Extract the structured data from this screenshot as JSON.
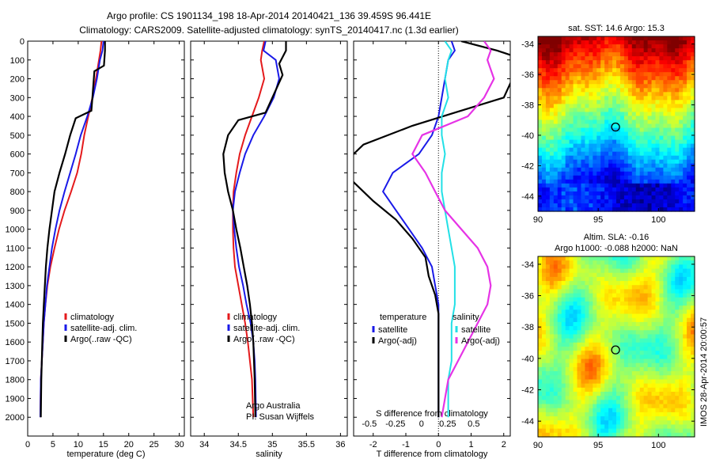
{
  "header": {
    "title_line1": "Argo profile: CS 1901134_198 18-Apr-2014 20140421_136 39.459S 96.441E",
    "title_line2": "Climatology: CARS2009. Satellite-adjusted climatology: synTS_20140417.nc (1.3d earlier)"
  },
  "side_note": "IMOS 28-Apr-2014 20:00:57",
  "colors": {
    "climatology": "#e41a1c",
    "satellite": "#1a1ae8",
    "argo": "#000000",
    "salinity_satellite": "#22e0e6",
    "salinity_argo": "#e633e6"
  },
  "chart_data": [
    {
      "type": "line",
      "xlabel": "temperature (deg C)",
      "xlim": [
        0,
        31
      ],
      "xticks": [
        0,
        5,
        10,
        15,
        20,
        25,
        30
      ],
      "ylim": [
        2100,
        0
      ],
      "yticks": [
        0,
        100,
        200,
        300,
        400,
        500,
        600,
        700,
        800,
        900,
        1000,
        1100,
        1200,
        1300,
        1400,
        1500,
        1600,
        1700,
        1800,
        1900,
        2000
      ],
      "legend": [
        "climatology",
        "satellite-adj. clim.",
        "Argo(..raw -QC)"
      ],
      "series": [
        {
          "name": "climatology",
          "color_key": "climatology",
          "x": [
            14.6,
            14.4,
            14.1,
            13.5,
            12.8,
            12.0,
            11.2,
            10.6,
            9.8,
            8.6,
            7.3,
            6.2,
            5.3,
            4.5,
            3.9,
            3.5,
            3.2,
            3.0,
            2.8,
            2.6,
            2.5
          ],
          "y": [
            0,
            50,
            100,
            200,
            300,
            400,
            500,
            600,
            700,
            800,
            900,
            1000,
            1100,
            1200,
            1300,
            1400,
            1500,
            1600,
            1700,
            1800,
            2000
          ]
        },
        {
          "name": "satellite-adj. clim.",
          "color_key": "satellite",
          "x": [
            15.0,
            14.8,
            14.3,
            13.7,
            12.9,
            11.8,
            10.5,
            9.5,
            8.4,
            7.3,
            6.3,
            5.5,
            4.8,
            4.3,
            3.8,
            3.5,
            3.2,
            3.0,
            2.8,
            2.6,
            2.5
          ],
          "y": [
            0,
            50,
            100,
            200,
            300,
            400,
            500,
            600,
            700,
            800,
            900,
            1000,
            1100,
            1200,
            1300,
            1400,
            1500,
            1600,
            1700,
            1800,
            2000
          ]
        },
        {
          "name": "Argo(..raw -QC)",
          "color_key": "argo",
          "x": [
            15.3,
            15.3,
            15.1,
            13.2,
            12.8,
            12.6,
            9.5,
            8.4,
            7.4,
            6.3,
            5.3,
            4.8,
            4.3,
            3.9,
            3.6,
            3.4,
            3.2,
            3.0,
            2.9,
            2.7,
            2.6
          ],
          "y": [
            0,
            50,
            130,
            160,
            300,
            370,
            410,
            500,
            600,
            700,
            800,
            900,
            1000,
            1100,
            1200,
            1300,
            1400,
            1500,
            1600,
            1800,
            2000
          ]
        }
      ]
    },
    {
      "type": "line",
      "xlabel": "salinity",
      "xlim": [
        33.8,
        36.1
      ],
      "xticks": [
        34,
        34.5,
        35,
        35.5,
        36
      ],
      "ylim": [
        2100,
        0
      ],
      "legend": [
        "climatology",
        "satellite-adj. clim.",
        "Argo(..raw -QC)"
      ],
      "annotation": [
        "Argo Australia",
        "PI: Susan Wijffels"
      ],
      "series": [
        {
          "name": "climatology",
          "color_key": "climatology",
          "x": [
            34.88,
            34.85,
            34.83,
            34.88,
            34.8,
            34.7,
            34.6,
            34.52,
            34.47,
            34.43,
            34.42,
            34.42,
            34.43,
            34.45,
            34.5,
            34.55,
            34.6,
            34.64,
            34.67,
            34.7,
            34.72
          ],
          "y": [
            0,
            50,
            100,
            200,
            300,
            400,
            500,
            600,
            700,
            800,
            900,
            1000,
            1100,
            1200,
            1300,
            1400,
            1500,
            1600,
            1700,
            1800,
            2000
          ]
        },
        {
          "name": "satellite-adj. clim.",
          "color_key": "satellite",
          "x": [
            34.9,
            34.87,
            35.05,
            35.1,
            35.02,
            34.88,
            34.72,
            34.6,
            34.52,
            34.45,
            34.42,
            34.44,
            34.47,
            34.51,
            34.57,
            34.62,
            34.68,
            34.72,
            34.74,
            34.75,
            34.76
          ],
          "y": [
            0,
            50,
            100,
            200,
            300,
            400,
            500,
            600,
            700,
            800,
            900,
            1000,
            1100,
            1200,
            1300,
            1400,
            1500,
            1600,
            1700,
            1800,
            2000
          ]
        },
        {
          "name": "Argo(..raw -QC)",
          "color_key": "argo",
          "x": [
            35.2,
            35.2,
            35.1,
            35.15,
            35.0,
            34.9,
            34.5,
            34.35,
            34.28,
            34.3,
            34.35,
            34.42,
            34.47,
            34.53,
            34.58,
            34.63,
            34.67,
            34.7,
            34.72,
            34.74,
            34.75
          ],
          "y": [
            0,
            50,
            120,
            180,
            300,
            380,
            420,
            500,
            600,
            700,
            800,
            900,
            1000,
            1100,
            1200,
            1300,
            1400,
            1500,
            1600,
            1800,
            2000
          ]
        }
      ]
    },
    {
      "type": "line",
      "xlabel": "T difference from climatology",
      "xlim": [
        -2.6,
        2.2
      ],
      "xticks": [
        -2,
        -1,
        0,
        1,
        2
      ],
      "top_label": "S difference from climatology",
      "top_ticks": [
        -0.5,
        -0.25,
        0,
        0.25,
        0.5
      ],
      "ylim": [
        2100,
        0
      ],
      "legend_titles": [
        "temperature",
        "salinity"
      ],
      "legend": [
        "satellite",
        "Argo(-adj)",
        "satellite",
        "Argo(-adj)"
      ],
      "series": [
        {
          "name": "temperature satellite",
          "color_key": "satellite",
          "x": [
            0.4,
            0.5,
            0.3,
            0.2,
            0.1,
            0.0,
            -0.2,
            -0.6,
            -1.4,
            -1.7,
            -1.3,
            -0.9,
            -0.5,
            -0.2,
            -0.1,
            0.0,
            0.0,
            0.0,
            0.0,
            0.0,
            0.0
          ],
          "y": [
            0,
            50,
            100,
            200,
            300,
            400,
            500,
            600,
            700,
            800,
            900,
            1000,
            1100,
            1200,
            1300,
            1400,
            1500,
            1600,
            1700,
            1800,
            2000
          ]
        },
        {
          "name": "temperature Argo(-adj)",
          "color_key": "argo",
          "x": [
            0.7,
            1.8,
            3.0,
            2.4,
            2.0,
            0.5,
            -0.8,
            -2.3,
            -2.9,
            -2.6,
            -2.0,
            -1.3,
            -0.8,
            -0.4,
            -0.3,
            -0.1,
            0.0,
            0.0,
            0.0,
            0.0,
            0.0
          ],
          "y": [
            0,
            50,
            120,
            150,
            300,
            380,
            450,
            550,
            650,
            750,
            850,
            950,
            1050,
            1150,
            1250,
            1350,
            1450,
            1550,
            1650,
            1800,
            2000
          ]
        },
        {
          "name": "salinity satellite",
          "color_key": "salinity_satellite",
          "x": [
            0.2,
            0.4,
            0.3,
            0.2,
            0.3,
            0.1,
            0.1,
            0.2,
            0.1,
            0.1,
            0.2,
            0.3,
            0.4,
            0.5,
            0.5,
            0.5,
            0.4,
            0.4,
            0.4,
            0.3,
            0.3
          ],
          "y": [
            0,
            50,
            100,
            200,
            300,
            400,
            500,
            600,
            700,
            800,
            900,
            1000,
            1100,
            1200,
            1300,
            1400,
            1500,
            1600,
            1700,
            1800,
            2000
          ]
        },
        {
          "name": "salinity Argo(-adj)",
          "color_key": "salinity_argo",
          "x": [
            1.4,
            1.6,
            1.5,
            1.7,
            1.4,
            0.9,
            -0.5,
            -0.8,
            -0.4,
            -0.1,
            0.2,
            0.7,
            1.2,
            1.5,
            1.6,
            1.5,
            1.2,
            0.9,
            0.6,
            0.3,
            0.1
          ],
          "y": [
            0,
            50,
            100,
            200,
            300,
            400,
            500,
            600,
            700,
            800,
            900,
            1000,
            1100,
            1200,
            1300,
            1400,
            1500,
            1600,
            1700,
            1800,
            2000
          ]
        }
      ]
    },
    {
      "type": "heatmap",
      "title": "sat. SST: 14.6 Argo: 15.3",
      "xlim": [
        90,
        103
      ],
      "ylim": [
        -45,
        -33.5
      ],
      "xticks": [
        90,
        95,
        100
      ],
      "yticks": [
        -34,
        -36,
        -38,
        -40,
        -42,
        -44
      ],
      "marker": {
        "lon": 96.441,
        "lat": -39.459
      }
    },
    {
      "type": "heatmap",
      "title_line1": "Altim. SLA: -0.16",
      "title_line2": "Argo h1000: -0.088 h2000: NaN",
      "xlim": [
        90,
        103
      ],
      "ylim": [
        -45,
        -33.5
      ],
      "xticks": [
        90,
        95,
        100
      ],
      "yticks": [
        -34,
        -36,
        -38,
        -40,
        -42,
        -44
      ],
      "marker": {
        "lon": 96.441,
        "lat": -39.459
      }
    }
  ]
}
